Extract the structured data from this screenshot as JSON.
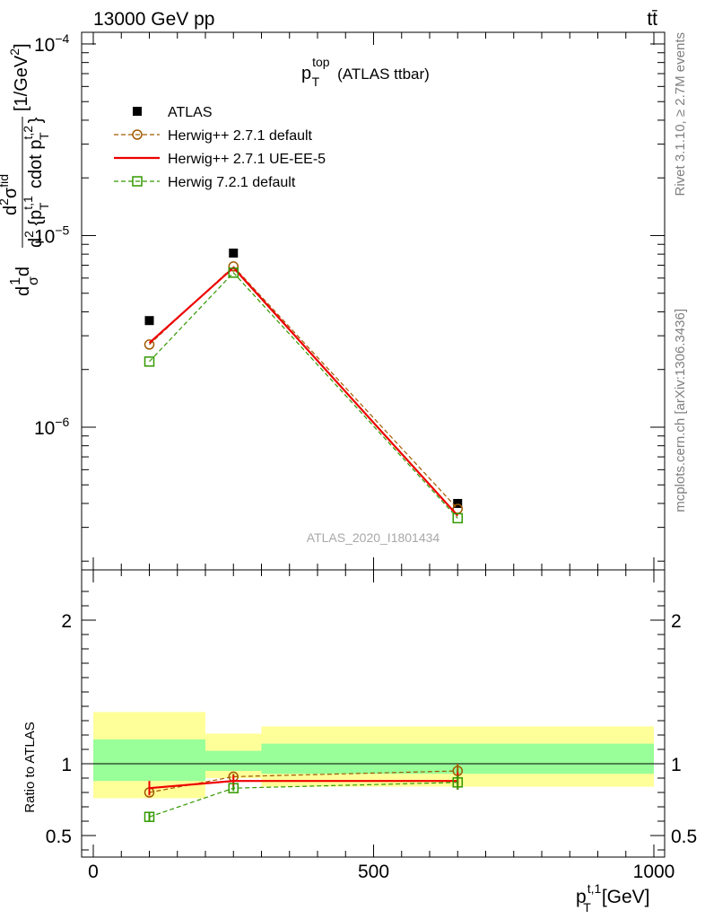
{
  "header": {
    "left": "13000 GeV pp",
    "right": "tt̄"
  },
  "side_labels": {
    "rivet": "Rivet 3.1.10, ≥ 2.7M events",
    "mcplots": "mcplots.cern.ch [arXiv:1306.3436]"
  },
  "watermark": "ATLAS_2020_I1801434",
  "colors": {
    "atlas": "#000000",
    "herwigpp_default": "#a05a00",
    "herwigpp_ueee5": "#ee0000",
    "herwig7_default": "#339900",
    "band_inner": "#99ff99",
    "band_outer": "#ffff99"
  },
  "chart_data": [
    {
      "type": "line",
      "title": "p_T^top (ATLAS ttbar)",
      "title_parts": {
        "main": "p",
        "sub": "T",
        "sup": "top",
        "rest": "(ATLAS ttbar)"
      },
      "ylabel": "d¹/σ d d²σ^{fid} / d² {p_T^{t,1} cdot p_T^{t,2}} [1/GeV²]",
      "ylabel_parts": {
        "unit": "[1/GeV",
        "unit_sup": "2",
        "unit_close": "]"
      },
      "ylog": true,
      "ylim": [
        1.8e-07,
        0.000115
      ],
      "xlim": [
        -25,
        1000
      ],
      "yticks": [
        {
          "value": 1e-06,
          "mant": "10",
          "exp": "−6"
        },
        {
          "value": 1e-05,
          "mant": "10",
          "exp": "−5"
        },
        {
          "value": 0.0001,
          "mant": "10",
          "exp": "−4"
        }
      ],
      "legend_position": "top-left",
      "series": [
        {
          "name": "ATLAS",
          "key": "atlas",
          "marker": "square-filled",
          "x": [
            100,
            250,
            650
          ],
          "y": [
            3.6e-06,
            8.1e-06,
            4e-07
          ]
        },
        {
          "name": "Herwig++ 2.7.1 default",
          "key": "herwigpp_default",
          "marker": "circle-open",
          "dashed": true,
          "x": [
            100,
            250,
            650
          ],
          "y": [
            2.7e-06,
            6.9e-06,
            3.75e-07
          ]
        },
        {
          "name": "Herwig++ 2.7.1 UE-EE-5",
          "key": "herwigpp_ueee5",
          "marker": "none",
          "dashed": false,
          "x": [
            100,
            250,
            650
          ],
          "y": [
            2.75e-06,
            6.8e-06,
            3.45e-07
          ]
        },
        {
          "name": "Herwig 7.2.1 default",
          "key": "herwig7_default",
          "marker": "square-open",
          "dashed": true,
          "x": [
            100,
            250,
            650
          ],
          "y": [
            2.2e-06,
            6.4e-06,
            3.35e-07
          ]
        }
      ]
    },
    {
      "type": "line",
      "ylabel": "Ratio to ATLAS",
      "xlabel": "p_T^{t,1} [GeV]",
      "xlabel_parts": {
        "main": "p",
        "sub": "T",
        "sup": "t,1",
        "rest": "[GeV]"
      },
      "ylim": [
        0.35,
        2.35
      ],
      "xlim": [
        -25,
        1000
      ],
      "yticks": [
        {
          "value": 0.5,
          "label": "0.5"
        },
        {
          "value": 1,
          "label": "1"
        },
        {
          "value": 2,
          "label": "2"
        }
      ],
      "xticks": [
        {
          "value": 0,
          "label": "0"
        },
        {
          "value": 500,
          "label": "500"
        },
        {
          "value": 1000,
          "label": "1000"
        }
      ],
      "bands": [
        {
          "x": [
            0,
            200
          ],
          "inner": [
            0.88,
            1.17
          ],
          "outer": [
            0.76,
            1.36
          ]
        },
        {
          "x": [
            200,
            300
          ],
          "inner": [
            0.95,
            1.09
          ],
          "outer": [
            0.9,
            1.21
          ]
        },
        {
          "x": [
            300,
            1000
          ],
          "inner": [
            0.93,
            1.14
          ],
          "outer": [
            0.84,
            1.26
          ]
        }
      ],
      "series": [
        {
          "name": "Herwig++ 2.7.1 default",
          "key": "herwigpp_default",
          "marker": "circle-open",
          "dashed": true,
          "x": [
            100,
            250,
            650
          ],
          "y": [
            0.8,
            0.91,
            0.95
          ],
          "err": [
            0.02,
            0.02,
            0.05
          ]
        },
        {
          "name": "Herwig++ 2.7.1 UE-EE-5",
          "key": "herwigpp_ueee5",
          "marker": "none",
          "dashed": false,
          "x": [
            100,
            250,
            650
          ],
          "y": [
            0.83,
            0.88,
            0.88
          ],
          "err": [
            0.05,
            0.04,
            0.06
          ]
        },
        {
          "name": "Herwig 7.2.1 default",
          "key": "herwig7_default",
          "marker": "square-open",
          "dashed": true,
          "x": [
            100,
            250,
            650
          ],
          "y": [
            0.63,
            0.83,
            0.87
          ],
          "err": [
            0.03,
            0.02,
            0.05
          ]
        }
      ]
    }
  ]
}
